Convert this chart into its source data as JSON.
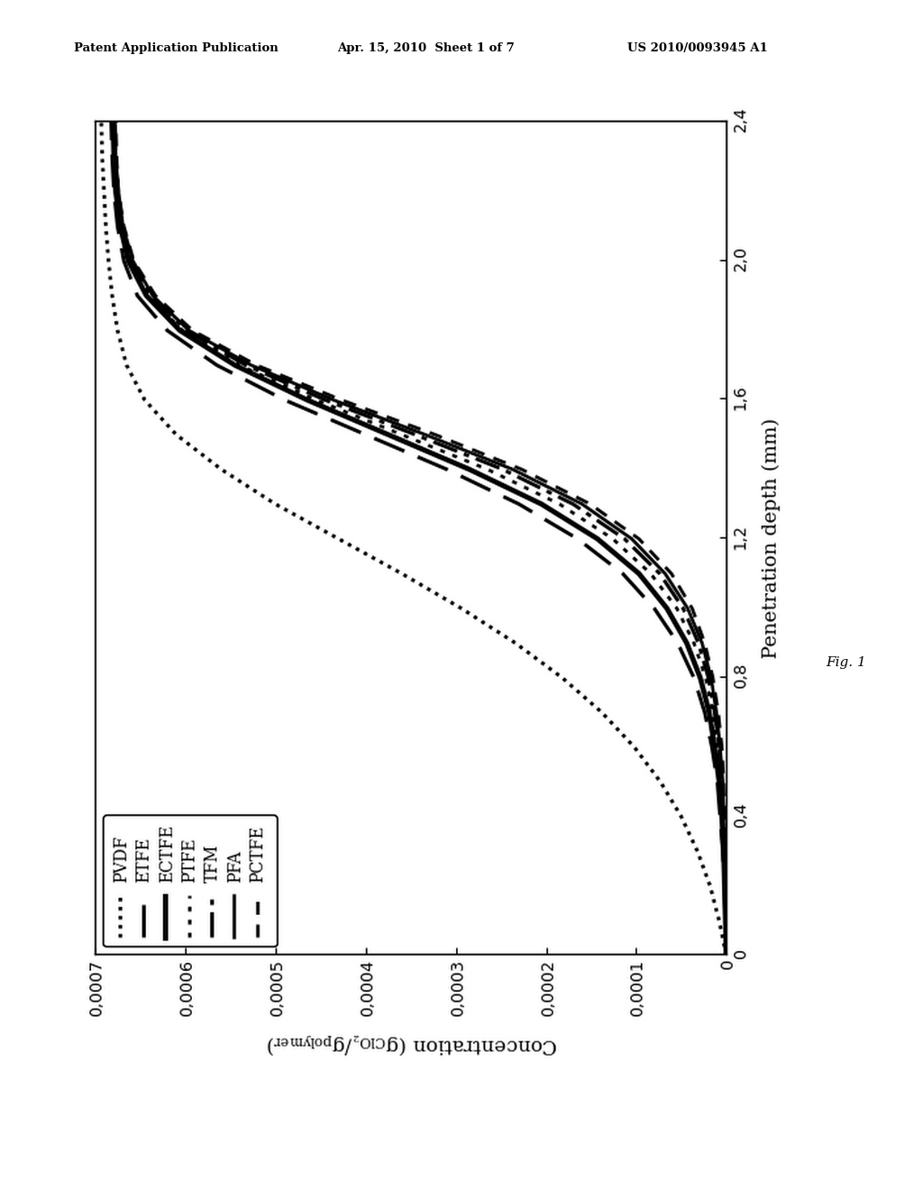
{
  "header_left": "Patent Application Publication",
  "header_center": "Apr. 15, 2010  Sheet 1 of 7",
  "header_right": "US 2010/0093945 A1",
  "fig_label": "Fig. 1",
  "xlabel": "Penetration depth (mm)",
  "ylabel": "Concentration (g_ClO2/g_polymer)",
  "x_ticks": [
    0,
    0.4,
    0.8,
    1.2,
    1.6,
    2.0,
    2.4
  ],
  "y_ticks": [
    0,
    0.0001,
    0.0002,
    0.0003,
    0.0004,
    0.0005,
    0.0006,
    0.0007
  ],
  "xlim": [
    0,
    2.4
  ],
  "ylim": [
    0,
    0.0007
  ],
  "series": [
    {
      "label": "PVDF",
      "ls": "pvdf",
      "lw": 2.0,
      "x": [
        0.0,
        0.1,
        0.2,
        0.3,
        0.4,
        0.5,
        0.6,
        0.7,
        0.8,
        0.9,
        1.0,
        1.1,
        1.2,
        1.3,
        1.4,
        1.5,
        1.6,
        1.7,
        1.8,
        1.9,
        2.0,
        2.1,
        2.2,
        2.3,
        2.4
      ],
      "y": [
        0.0,
        8e-06,
        1.8e-05,
        3.2e-05,
        5e-05,
        7.3e-05,
        0.000102,
        0.000138,
        0.000182,
        0.000234,
        0.000294,
        0.00036,
        0.00043,
        0.0005,
        0.00056,
        0.00061,
        0.000645,
        0.000665,
        0.000675,
        0.000681,
        0.000685,
        0.000688,
        0.00069,
        0.000692,
        0.000693
      ]
    },
    {
      "label": "ETFE",
      "ls": "etfe",
      "lw": 2.0,
      "x": [
        0.0,
        0.1,
        0.2,
        0.3,
        0.4,
        0.5,
        0.6,
        0.7,
        0.8,
        0.9,
        1.0,
        1.1,
        1.2,
        1.3,
        1.4,
        1.5,
        1.6,
        1.7,
        1.8,
        1.9,
        2.0,
        2.1,
        2.2,
        2.3,
        2.4
      ],
      "y": [
        0.0,
        1e-06,
        2e-06,
        4e-06,
        7e-06,
        1e-05,
        1.6e-05,
        2.4e-05,
        3.6e-05,
        5.4e-05,
        8e-05,
        0.000115,
        0.000165,
        0.00023,
        0.00031,
        0.0004,
        0.00049,
        0.000565,
        0.00062,
        0.000653,
        0.000668,
        0.000675,
        0.000679,
        0.000681,
        0.000682
      ]
    },
    {
      "label": "ECTFE",
      "ls": "ectfe",
      "lw": 2.8,
      "x": [
        0.0,
        0.1,
        0.2,
        0.3,
        0.4,
        0.5,
        0.6,
        0.7,
        0.8,
        0.9,
        1.0,
        1.1,
        1.2,
        1.3,
        1.4,
        1.5,
        1.6,
        1.7,
        1.8,
        1.9,
        2.0,
        2.1,
        2.2,
        2.3,
        2.4
      ],
      "y": [
        0.0,
        1e-06,
        2e-06,
        3e-06,
        5e-06,
        8e-06,
        1.3e-05,
        1.9e-05,
        2.9e-05,
        4.4e-05,
        6.6e-05,
        9.7e-05,
        0.000143,
        0.000205,
        0.000285,
        0.000375,
        0.000465,
        0.000545,
        0.000606,
        0.000643,
        0.000663,
        0.000672,
        0.000677,
        0.000679,
        0.00068
      ]
    },
    {
      "label": "PTFE",
      "ls": "ptfe",
      "lw": 1.8,
      "x": [
        0.0,
        0.1,
        0.2,
        0.3,
        0.4,
        0.5,
        0.6,
        0.7,
        0.8,
        0.9,
        1.0,
        1.1,
        1.2,
        1.3,
        1.4,
        1.5,
        1.6,
        1.7,
        1.8,
        1.9,
        2.0,
        2.1,
        2.2,
        2.3,
        2.4
      ],
      "y": [
        0.0,
        1e-06,
        1e-06,
        2e-06,
        4e-06,
        6e-06,
        1e-05,
        1.5e-05,
        2.3e-05,
        3.6e-05,
        5.5e-05,
        8.4e-05,
        0.000126,
        0.000185,
        0.000265,
        0.00036,
        0.000455,
        0.00054,
        0.000603,
        0.000641,
        0.000661,
        0.000671,
        0.000676,
        0.000678,
        0.000679
      ]
    },
    {
      "label": "TFM",
      "ls": "tfm",
      "lw": 2.0,
      "x": [
        0.0,
        0.1,
        0.2,
        0.3,
        0.4,
        0.5,
        0.6,
        0.7,
        0.8,
        0.9,
        1.0,
        1.1,
        1.2,
        1.3,
        1.4,
        1.5,
        1.6,
        1.7,
        1.8,
        1.9,
        2.0,
        2.1,
        2.2,
        2.3,
        2.4
      ],
      "y": [
        0.0,
        1e-06,
        1e-06,
        2e-06,
        3e-06,
        5e-06,
        8e-06,
        1.3e-05,
        2e-05,
        3.1e-05,
        4.8e-05,
        7.4e-05,
        0.000113,
        0.00017,
        0.000248,
        0.000345,
        0.000445,
        0.000533,
        0.000599,
        0.000638,
        0.000659,
        0.00067,
        0.000675,
        0.000677,
        0.000678
      ]
    },
    {
      "label": "PFA",
      "ls": "pfa",
      "lw": 1.8,
      "x": [
        0.0,
        0.1,
        0.2,
        0.3,
        0.4,
        0.5,
        0.6,
        0.7,
        0.8,
        0.9,
        1.0,
        1.1,
        1.2,
        1.3,
        1.4,
        1.5,
        1.6,
        1.7,
        1.8,
        1.9,
        2.0,
        2.1,
        2.2,
        2.3,
        2.4
      ],
      "y": [
        0.0,
        1e-06,
        1e-06,
        2e-06,
        3e-06,
        4e-06,
        7e-06,
        1.1e-05,
        1.7e-05,
        2.7e-05,
        4.3e-05,
        6.8e-05,
        0.000105,
        0.00016,
        0.000237,
        0.000334,
        0.000436,
        0.000527,
        0.000596,
        0.000636,
        0.000658,
        0.000669,
        0.000674,
        0.000677,
        0.000678
      ]
    },
    {
      "label": "PCTFE",
      "ls": "pctfe",
      "lw": 1.8,
      "x": [
        0.0,
        0.1,
        0.2,
        0.3,
        0.4,
        0.5,
        0.6,
        0.7,
        0.8,
        0.9,
        1.0,
        1.1,
        1.2,
        1.3,
        1.4,
        1.5,
        1.6,
        1.7,
        1.8,
        1.9,
        2.0,
        2.1,
        2.2,
        2.3,
        2.4
      ],
      "y": [
        0.0,
        1e-06,
        1e-06,
        1e-06,
        2e-06,
        3e-06,
        5e-06,
        9e-06,
        1.5e-05,
        2.4e-05,
        3.8e-05,
        6.1e-05,
        9.7e-05,
        0.000151,
        0.000227,
        0.000323,
        0.000427,
        0.000521,
        0.000592,
        0.000633,
        0.000657,
        0.000668,
        0.000674,
        0.000676,
        0.000677
      ]
    }
  ]
}
